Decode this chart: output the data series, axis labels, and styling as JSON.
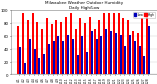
{
  "title": "Milwaukee Weather Outdoor Humidity",
  "subtitle": "Daily High/Low",
  "background_color": "#ffffff",
  "grid_color": "#cccccc",
  "high_color": "#ff0000",
  "low_color": "#0000bb",
  "ylim": [
    0,
    100
  ],
  "ytick_labels": [
    "0",
    "20",
    "40",
    "60",
    "80",
    "100"
  ],
  "ytick_vals": [
    0,
    20,
    40,
    60,
    80,
    100
  ],
  "categories": [
    "4/1",
    "4/2",
    "4/3",
    "4/4",
    "4/5",
    "4/6",
    "4/7",
    "4/8",
    "4/9",
    "4/10",
    "4/11",
    "4/12",
    "4/13",
    "4/14",
    "4/15",
    "4/16",
    "4/17",
    "4/18",
    "4/19",
    "4/20",
    "4/21",
    "4/22",
    "4/23",
    "4/24",
    "4/25",
    "4/26",
    "4/27",
    "4/28"
  ],
  "highs": [
    75,
    95,
    85,
    95,
    82,
    70,
    88,
    78,
    85,
    82,
    90,
    95,
    70,
    88,
    80,
    90,
    70,
    85,
    95,
    95,
    95,
    95,
    88,
    85,
    68,
    65,
    88,
    95
  ],
  "lows": [
    42,
    18,
    55,
    40,
    25,
    32,
    48,
    52,
    60,
    52,
    62,
    55,
    30,
    60,
    35,
    68,
    55,
    60,
    70,
    68,
    65,
    62,
    45,
    62,
    52,
    45,
    28,
    75
  ]
}
